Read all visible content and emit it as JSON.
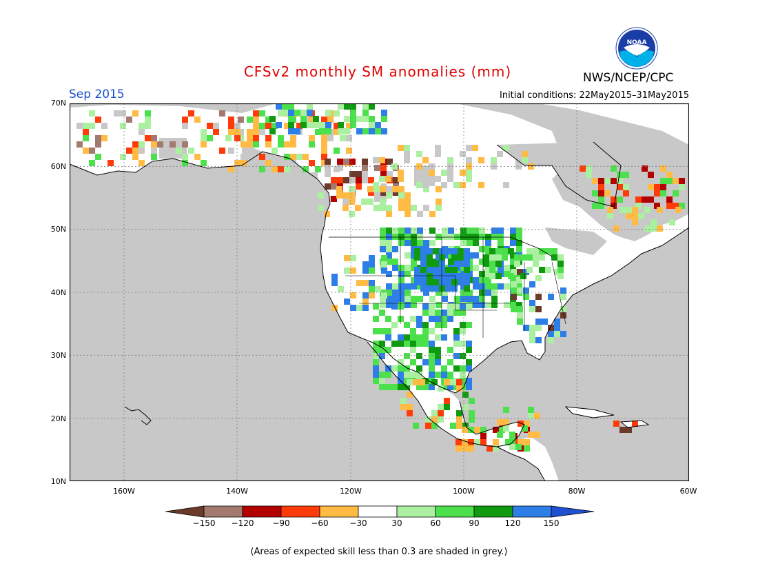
{
  "header": {
    "title": "CFSv2 monthly SM anomalies (mm)",
    "valid_month": "Sep 2015",
    "initial_conditions": "Initial conditions: 22May2015–31May2015",
    "agency": "NWS/NCEP/CPC",
    "logo_text": "NOAA"
  },
  "map": {
    "lat_labels": [
      "70N",
      "60N",
      "50N",
      "40N",
      "30N",
      "20N",
      "10N"
    ],
    "lon_labels": [
      "160W",
      "140W",
      "120W",
      "100W",
      "80W",
      "60W"
    ],
    "colors": {
      "no_skill_grey": "#c8c8c8",
      "neutral_white": "#ffffff",
      "land_outline": "#000000",
      "grid": "#808080"
    }
  },
  "legend": {
    "ticks": [
      "−150",
      "−120",
      "−90",
      "−60",
      "−30",
      "30",
      "60",
      "90",
      "120",
      "150"
    ],
    "colors": [
      "#6b3a2a",
      "#a37a70",
      "#b30000",
      "#ff3b0a",
      "#ffbb44",
      "#ffffff",
      "#aaf0a0",
      "#4ce04c",
      "#109a10",
      "#2e7ee8",
      "#1e50d0"
    ]
  },
  "footnote": "(Areas of expected skill less than 0.3 are shaded in grey.)"
}
